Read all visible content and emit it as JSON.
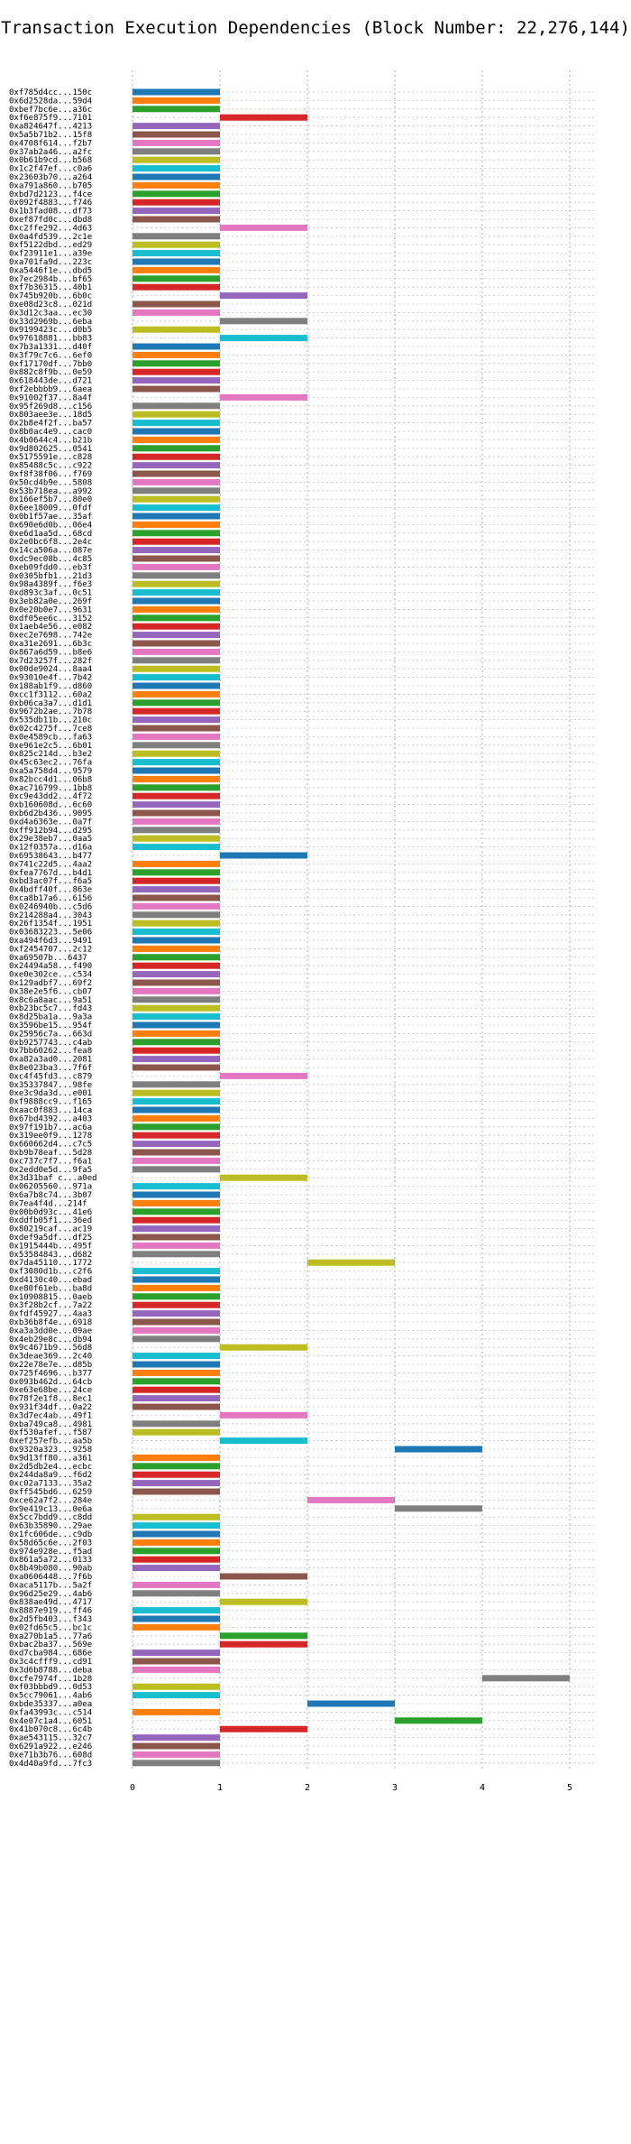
{
  "chart_data": {
    "type": "bar",
    "orientation": "horizontal",
    "title": "Transaction Execution Dependencies (Block Number: 22,276,144)",
    "xlabel": "",
    "ylabel": "",
    "xlim": [
      0,
      5.3
    ],
    "xticks": [
      "0",
      "1",
      "2",
      "3",
      "4",
      "5"
    ],
    "grid": true,
    "legend": "none",
    "palette": [
      "#1f77b4",
      "#ff7f0e",
      "#2ca02c",
      "#d62728",
      "#9467bd",
      "#8c564b",
      "#e377c2",
      "#7f7f7f",
      "#bcbd22",
      "#17becf"
    ],
    "bars": [
      {
        "label": "0xf785d4cc...150c",
        "start": 0,
        "end": 1
      },
      {
        "label": "0x6d2528da...59d4",
        "start": 0,
        "end": 1
      },
      {
        "label": "0xbef7bc6e...a36c",
        "start": 0,
        "end": 1
      },
      {
        "label": "0xf6e875f9...7101",
        "start": 1,
        "end": 2
      },
      {
        "label": "0xa824647f...4213",
        "start": 0,
        "end": 1
      },
      {
        "label": "0x5a5b71b2...15f8",
        "start": 0,
        "end": 1
      },
      {
        "label": "0x4708f614...f2b7",
        "start": 0,
        "end": 1
      },
      {
        "label": "0x37ab2a46...a2fc",
        "start": 0,
        "end": 1
      },
      {
        "label": "0x0b61b9cd...b568",
        "start": 0,
        "end": 1
      },
      {
        "label": "0x1c2f47ef...c0a6",
        "start": 0,
        "end": 1
      },
      {
        "label": "0x23603b70...a264",
        "start": 0,
        "end": 1
      },
      {
        "label": "0xa791a860...b705",
        "start": 0,
        "end": 1
      },
      {
        "label": "0xbd7d2123...f4ce",
        "start": 0,
        "end": 1
      },
      {
        "label": "0x092f4883...f746",
        "start": 0,
        "end": 1
      },
      {
        "label": "0x1b3fad08...df73",
        "start": 0,
        "end": 1
      },
      {
        "label": "0xef87fd0c...dbd8",
        "start": 0,
        "end": 1
      },
      {
        "label": "0xc2ffe292...4d63",
        "start": 1,
        "end": 2
      },
      {
        "label": "0x0a4fd539...2c1e",
        "start": 0,
        "end": 1
      },
      {
        "label": "0xf5122dbd...ed29",
        "start": 0,
        "end": 1
      },
      {
        "label": "0xf23911e1...a39e",
        "start": 0,
        "end": 1
      },
      {
        "label": "0xa701fa9d...223c",
        "start": 0,
        "end": 1
      },
      {
        "label": "0xa5446f1e...dbd5",
        "start": 0,
        "end": 1
      },
      {
        "label": "0x7ec2984b...bf65",
        "start": 0,
        "end": 1
      },
      {
        "label": "0xf7b36315...40b1",
        "start": 0,
        "end": 1
      },
      {
        "label": "0x745b920b...6b0c",
        "start": 1,
        "end": 2
      },
      {
        "label": "0xe08d23c8...021d",
        "start": 0,
        "end": 1
      },
      {
        "label": "0x3d12c3aa...ec30",
        "start": 0,
        "end": 1
      },
      {
        "label": "0x33d2969b...6eba",
        "start": 1,
        "end": 2
      },
      {
        "label": "0x9199423c...d0b5",
        "start": 0,
        "end": 1
      },
      {
        "label": "0x97618881...bb83",
        "start": 1,
        "end": 2
      },
      {
        "label": "0x7b3a1331...d40f",
        "start": 0,
        "end": 1
      },
      {
        "label": "0x3f79c7c6...6ef0",
        "start": 0,
        "end": 1
      },
      {
        "label": "0xf17170df...7bb0",
        "start": 0,
        "end": 1
      },
      {
        "label": "0x882c8f9b...0e59",
        "start": 0,
        "end": 1
      },
      {
        "label": "0x618443de...d721",
        "start": 0,
        "end": 1
      },
      {
        "label": "0xf2ebbbb9...6aea",
        "start": 0,
        "end": 1
      },
      {
        "label": "0x91002f37...8a4f",
        "start": 1,
        "end": 2
      },
      {
        "label": "0x95f269d8...c156",
        "start": 0,
        "end": 1
      },
      {
        "label": "0x803aee3e...18d5",
        "start": 0,
        "end": 1
      },
      {
        "label": "0x2b8e4f2f...ba57",
        "start": 0,
        "end": 1
      },
      {
        "label": "0x8b0ac4e9...cac0",
        "start": 0,
        "end": 1
      },
      {
        "label": "0x4b0644c4...b21b",
        "start": 0,
        "end": 1
      },
      {
        "label": "0x9d802625...0541",
        "start": 0,
        "end": 1
      },
      {
        "label": "0x5175591e...c828",
        "start": 0,
        "end": 1
      },
      {
        "label": "0x85488c5c...c922",
        "start": 0,
        "end": 1
      },
      {
        "label": "0xf8f38f06...f769",
        "start": 0,
        "end": 1
      },
      {
        "label": "0x50cd4b9e...5808",
        "start": 0,
        "end": 1
      },
      {
        "label": "0x53b718ea...a992",
        "start": 0,
        "end": 1
      },
      {
        "label": "0x166ef5b7...80e0",
        "start": 0,
        "end": 1
      },
      {
        "label": "0x6ee18009...0fdf",
        "start": 0,
        "end": 1
      },
      {
        "label": "0x0b1f57ae...35af",
        "start": 0,
        "end": 1
      },
      {
        "label": "0x690e6d0b...06e4",
        "start": 0,
        "end": 1
      },
      {
        "label": "0xe6d1aa5d...68cd",
        "start": 0,
        "end": 1
      },
      {
        "label": "0x2e0bc6f8...2e4c",
        "start": 0,
        "end": 1
      },
      {
        "label": "0x14ca506a...087e",
        "start": 0,
        "end": 1
      },
      {
        "label": "0xdc9ec08b...4c85",
        "start": 0,
        "end": 1
      },
      {
        "label": "0xeb09fdd0...eb3f",
        "start": 0,
        "end": 1
      },
      {
        "label": "0x0305bfb1...21d3",
        "start": 0,
        "end": 1
      },
      {
        "label": "0x98a4389f...f6e3",
        "start": 0,
        "end": 1
      },
      {
        "label": "0xd893c3af...0c51",
        "start": 0,
        "end": 1
      },
      {
        "label": "0x3eb82a0e...269f",
        "start": 0,
        "end": 1
      },
      {
        "label": "0x0e20b0e7...9631",
        "start": 0,
        "end": 1
      },
      {
        "label": "0xdf05ee6c...3152",
        "start": 0,
        "end": 1
      },
      {
        "label": "0x1aeb4e56...e082",
        "start": 0,
        "end": 1
      },
      {
        "label": "0xec2e7698...742e",
        "start": 0,
        "end": 1
      },
      {
        "label": "0xa31e2691...6b3c",
        "start": 0,
        "end": 1
      },
      {
        "label": "0x867a6d59...b8e6",
        "start": 0,
        "end": 1
      },
      {
        "label": "0x7d23257f...282f",
        "start": 0,
        "end": 1
      },
      {
        "label": "0x00de9024...8aa4",
        "start": 0,
        "end": 1
      },
      {
        "label": "0x93010e4f...7b42",
        "start": 0,
        "end": 1
      },
      {
        "label": "0x188ab1f9...d860",
        "start": 0,
        "end": 1
      },
      {
        "label": "0xcc1f3112...60a2",
        "start": 0,
        "end": 1
      },
      {
        "label": "0xb06ca3a7...d1d1",
        "start": 0,
        "end": 1
      },
      {
        "label": "0x9672b2ae...7b78",
        "start": 0,
        "end": 1
      },
      {
        "label": "0x535db11b...210c",
        "start": 0,
        "end": 1
      },
      {
        "label": "0x02c4275f...7ce8",
        "start": 0,
        "end": 1
      },
      {
        "label": "0x0e4589cb...fa63",
        "start": 0,
        "end": 1
      },
      {
        "label": "0xe961e2c5...6b01",
        "start": 0,
        "end": 1
      },
      {
        "label": "0x825c214d...b3e2",
        "start": 0,
        "end": 1
      },
      {
        "label": "0x45c63ec2...76fa",
        "start": 0,
        "end": 1
      },
      {
        "label": "0xa5a758d4...9579",
        "start": 0,
        "end": 1
      },
      {
        "label": "0x82bcc4d1...06b8",
        "start": 0,
        "end": 1
      },
      {
        "label": "0xac716799...1bb8",
        "start": 0,
        "end": 1
      },
      {
        "label": "0xc9e43dd2...4f72",
        "start": 0,
        "end": 1
      },
      {
        "label": "0xb160608d...6c60",
        "start": 0,
        "end": 1
      },
      {
        "label": "0xb6d2b436...9095",
        "start": 0,
        "end": 1
      },
      {
        "label": "0xd4a6363e...0a7f",
        "start": 0,
        "end": 1
      },
      {
        "label": "0xff912b94...d295",
        "start": 0,
        "end": 1
      },
      {
        "label": "0x29e38eb7...0aa5",
        "start": 0,
        "end": 1
      },
      {
        "label": "0x12f0357a...d16a",
        "start": 0,
        "end": 1
      },
      {
        "label": "0x69538643...b477",
        "start": 1,
        "end": 2
      },
      {
        "label": "0x741c22d5...4aa2",
        "start": 0,
        "end": 1
      },
      {
        "label": "0xfea7767d...b4d1",
        "start": 0,
        "end": 1
      },
      {
        "label": "0xbd3ac07f...f6a5",
        "start": 0,
        "end": 1
      },
      {
        "label": "0x4bdff40f...863e",
        "start": 0,
        "end": 1
      },
      {
        "label": "0xca8b17a6...6156",
        "start": 0,
        "end": 1
      },
      {
        "label": "0x0246940b...c5d6",
        "start": 0,
        "end": 1
      },
      {
        "label": "0x214288a4...3043",
        "start": 0,
        "end": 1
      },
      {
        "label": "0x26f1354f...1951",
        "start": 0,
        "end": 1
      },
      {
        "label": "0x03683223...5e06",
        "start": 0,
        "end": 1
      },
      {
        "label": "0xa494f6d3...9491",
        "start": 0,
        "end": 1
      },
      {
        "label": "0xf2454707...2c12",
        "start": 0,
        "end": 1
      },
      {
        "label": "0xa69507b...6437",
        "start": 0,
        "end": 1
      },
      {
        "label": "0x24494a58...f490",
        "start": 0,
        "end": 1
      },
      {
        "label": "0xe0e302ce...c534",
        "start": 0,
        "end": 1
      },
      {
        "label": "0x129adbf7...69f2",
        "start": 0,
        "end": 1
      },
      {
        "label": "0x38e2e5f6...cb07",
        "start": 0,
        "end": 1
      },
      {
        "label": "0x8c6a8aac...9a51",
        "start": 0,
        "end": 1
      },
      {
        "label": "0xb23bc5c7...fd43",
        "start": 0,
        "end": 1
      },
      {
        "label": "0x8d25ba1a...9a3a",
        "start": 0,
        "end": 1
      },
      {
        "label": "0x3596be15...954f",
        "start": 0,
        "end": 1
      },
      {
        "label": "0x25956c7a...663d",
        "start": 0,
        "end": 1
      },
      {
        "label": "0xb9257743...c4ab",
        "start": 0,
        "end": 1
      },
      {
        "label": "0x7bb60262...fea8",
        "start": 0,
        "end": 1
      },
      {
        "label": "0xa82a3ad0...2081",
        "start": 0,
        "end": 1
      },
      {
        "label": "0x8e023ba3...7f6f",
        "start": 0,
        "end": 1
      },
      {
        "label": "0xc4f45fd3...c879",
        "start": 1,
        "end": 2
      },
      {
        "label": "0x35337847...98fe",
        "start": 0,
        "end": 1
      },
      {
        "label": "0xe3c9da3d...e001",
        "start": 0,
        "end": 1
      },
      {
        "label": "0xf9888cc9...f165",
        "start": 0,
        "end": 1
      },
      {
        "label": "0xaac0f883...14ca",
        "start": 0,
        "end": 1
      },
      {
        "label": "0x67bd4392...a403",
        "start": 0,
        "end": 1
      },
      {
        "label": "0x97f191b7...ac6a",
        "start": 0,
        "end": 1
      },
      {
        "label": "0x319ee0f9...1278",
        "start": 0,
        "end": 1
      },
      {
        "label": "0x660662d4...c7c5",
        "start": 0,
        "end": 1
      },
      {
        "label": "0xb9b78eaf...5d28",
        "start": 0,
        "end": 1
      },
      {
        "label": "0xc737c7f7...f6a1",
        "start": 0,
        "end": 1
      },
      {
        "label": "0x2edd0e5d...9fa5",
        "start": 0,
        "end": 1
      },
      {
        "label": "0x3d31baf c...a0ed",
        "start": 1,
        "end": 2
      },
      {
        "label": "0x06205560...971a",
        "start": 0,
        "end": 1
      },
      {
        "label": "0x6a7b8c74...3b07",
        "start": 0,
        "end": 1
      },
      {
        "label": "0x7ea4f4d...214f",
        "start": 0,
        "end": 1
      },
      {
        "label": "0x00b0d93c...41e6",
        "start": 0,
        "end": 1
      },
      {
        "label": "0xddfb05f1...36ed",
        "start": 0,
        "end": 1
      },
      {
        "label": "0x80219caf...ac19",
        "start": 0,
        "end": 1
      },
      {
        "label": "0xdef9a5df...df25",
        "start": 0,
        "end": 1
      },
      {
        "label": "0x1915444b...495f",
        "start": 0,
        "end": 1
      },
      {
        "label": "0x53584843...d682",
        "start": 0,
        "end": 1
      },
      {
        "label": "0x7da45110...1772",
        "start": 2,
        "end": 3
      },
      {
        "label": "0xf3080d1b...c2f6",
        "start": 0,
        "end": 1
      },
      {
        "label": "0xd4130c40...ebad",
        "start": 0,
        "end": 1
      },
      {
        "label": "0xe80f61eb...ba8d",
        "start": 0,
        "end": 1
      },
      {
        "label": "0x10908815...0aeb",
        "start": 0,
        "end": 1
      },
      {
        "label": "0x3f28b2cf...7a22",
        "start": 0,
        "end": 1
      },
      {
        "label": "0xfdf45927...4aa3",
        "start": 0,
        "end": 1
      },
      {
        "label": "0xb36b8f4e...6918",
        "start": 0,
        "end": 1
      },
      {
        "label": "0xa3a3dd0e...09ae",
        "start": 0,
        "end": 1
      },
      {
        "label": "0x4eb29e8c...db94",
        "start": 0,
        "end": 1
      },
      {
        "label": "0x9c4671b9...56d8",
        "start": 1,
        "end": 2
      },
      {
        "label": "0x3deae369...2c40",
        "start": 0,
        "end": 1
      },
      {
        "label": "0x22e78e7e...d85b",
        "start": 0,
        "end": 1
      },
      {
        "label": "0x725f4696...b377",
        "start": 0,
        "end": 1
      },
      {
        "label": "0x093b462d...64cb",
        "start": 0,
        "end": 1
      },
      {
        "label": "0xe63e68be...24ce",
        "start": 0,
        "end": 1
      },
      {
        "label": "0x78f2e1f8...8ec1",
        "start": 0,
        "end": 1
      },
      {
        "label": "0x931f34df...0a22",
        "start": 0,
        "end": 1
      },
      {
        "label": "0x3d7ec4ab...49f1",
        "start": 1,
        "end": 2
      },
      {
        "label": "0xba749ca8...4981",
        "start": 0,
        "end": 1
      },
      {
        "label": "0xf530afef...f587",
        "start": 0,
        "end": 1
      },
      {
        "label": "0xef257efb...aa5b",
        "start": 1,
        "end": 2
      },
      {
        "label": "0x9320a323...9258",
        "start": 3,
        "end": 4
      },
      {
        "label": "0x9d13ff80...a361",
        "start": 0,
        "end": 1
      },
      {
        "label": "0x2d5db2e4...ecbc",
        "start": 0,
        "end": 1
      },
      {
        "label": "0x244da8a9...f6d2",
        "start": 0,
        "end": 1
      },
      {
        "label": "0xc02a7133...35a2",
        "start": 0,
        "end": 1
      },
      {
        "label": "0xff545bd6...6259",
        "start": 0,
        "end": 1
      },
      {
        "label": "0xce62a7f2...284e",
        "start": 2,
        "end": 3
      },
      {
        "label": "0x9e419c13...0e6a",
        "start": 3,
        "end": 4
      },
      {
        "label": "0x5cc7bdd9...c8dd",
        "start": 0,
        "end": 1
      },
      {
        "label": "0x63b35890...29ae",
        "start": 0,
        "end": 1
      },
      {
        "label": "0x1fc606de...c9db",
        "start": 0,
        "end": 1
      },
      {
        "label": "0x58d65c6e...2f03",
        "start": 0,
        "end": 1
      },
      {
        "label": "0x974e928e...f5ad",
        "start": 0,
        "end": 1
      },
      {
        "label": "0x861a5a72...0133",
        "start": 0,
        "end": 1
      },
      {
        "label": "0x8b49b080...90ab",
        "start": 0,
        "end": 1
      },
      {
        "label": "0xa0606448...7f6b",
        "start": 1,
        "end": 2
      },
      {
        "label": "0xaca5117b...5a2f",
        "start": 0,
        "end": 1
      },
      {
        "label": "0x96d25e29...4ab6",
        "start": 0,
        "end": 1
      },
      {
        "label": "0x838ae49d...4717",
        "start": 1,
        "end": 2
      },
      {
        "label": "0x8887e919...ff46",
        "start": 0,
        "end": 1
      },
      {
        "label": "0x2d5fb403...f343",
        "start": 0,
        "end": 1
      },
      {
        "label": "0x02fd65c5...bc1c",
        "start": 0,
        "end": 1
      },
      {
        "label": "0xa270b1a5...77a6",
        "start": 1,
        "end": 2
      },
      {
        "label": "0xbac2ba37...569e",
        "start": 1,
        "end": 2
      },
      {
        "label": "0xd7cba984...686e",
        "start": 0,
        "end": 1
      },
      {
        "label": "0x3c4cfff9...cd91",
        "start": 0,
        "end": 1
      },
      {
        "label": "0x3d6b8788...deba",
        "start": 0,
        "end": 1
      },
      {
        "label": "0xcfe7974f...1b28",
        "start": 4,
        "end": 5
      },
      {
        "label": "0xf03bbbd9...0d53",
        "start": 0,
        "end": 1
      },
      {
        "label": "0x5cc79061...4ab6",
        "start": 0,
        "end": 1
      },
      {
        "label": "0xbde35337...a0ea",
        "start": 2,
        "end": 3
      },
      {
        "label": "0xfa43993c...c514",
        "start": 0,
        "end": 1
      },
      {
        "label": "0x4e07c1a4...6051",
        "start": 3,
        "end": 4
      },
      {
        "label": "0x41b070c8...6c4b",
        "start": 1,
        "end": 2
      },
      {
        "label": "0xae543115...32c7",
        "start": 0,
        "end": 1
      },
      {
        "label": "0x6291a922...e246",
        "start": 0,
        "end": 1
      },
      {
        "label": "0xe71b3b76...608d",
        "start": 0,
        "end": 1
      },
      {
        "label": "0x4d40a9fd...7fc3",
        "start": 0,
        "end": 1
      }
    ]
  }
}
